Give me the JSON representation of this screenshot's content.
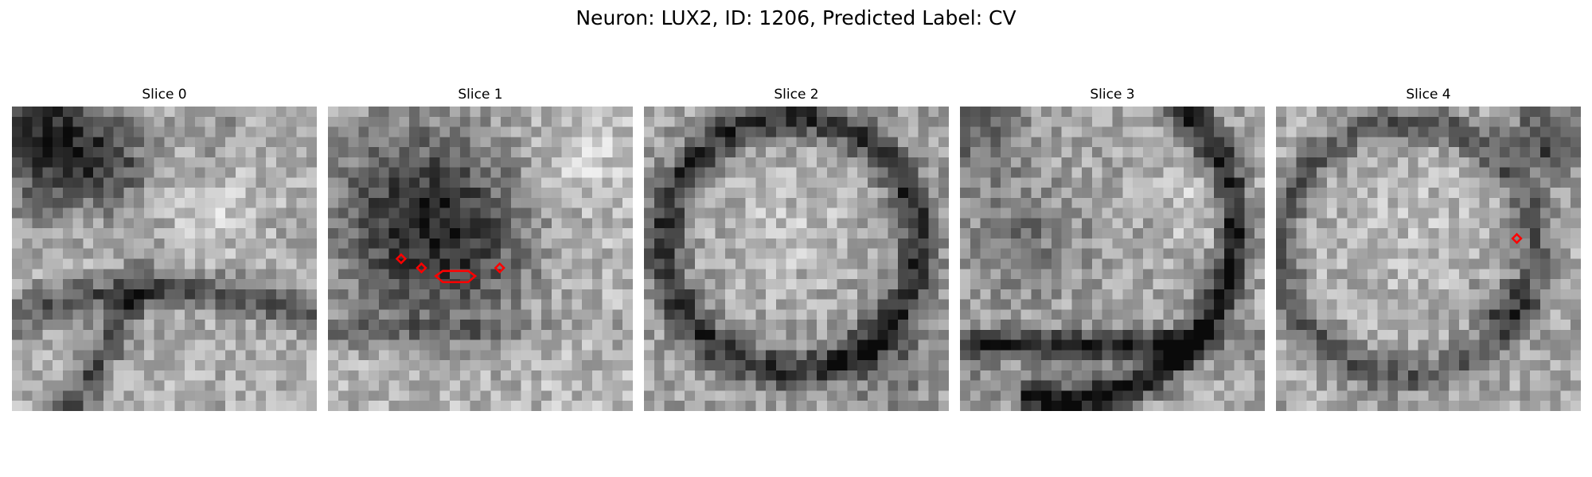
{
  "figure": {
    "title": "Neuron: LUX2, ID: 1206, Predicted Label: CV"
  },
  "panels": [
    {
      "title": "Slice 0"
    },
    {
      "title": "Slice 1"
    },
    {
      "title": "Slice 2"
    },
    {
      "title": "Slice 3"
    },
    {
      "title": "Slice 4"
    }
  ],
  "style": {
    "annotation_color": "#ff0000"
  }
}
